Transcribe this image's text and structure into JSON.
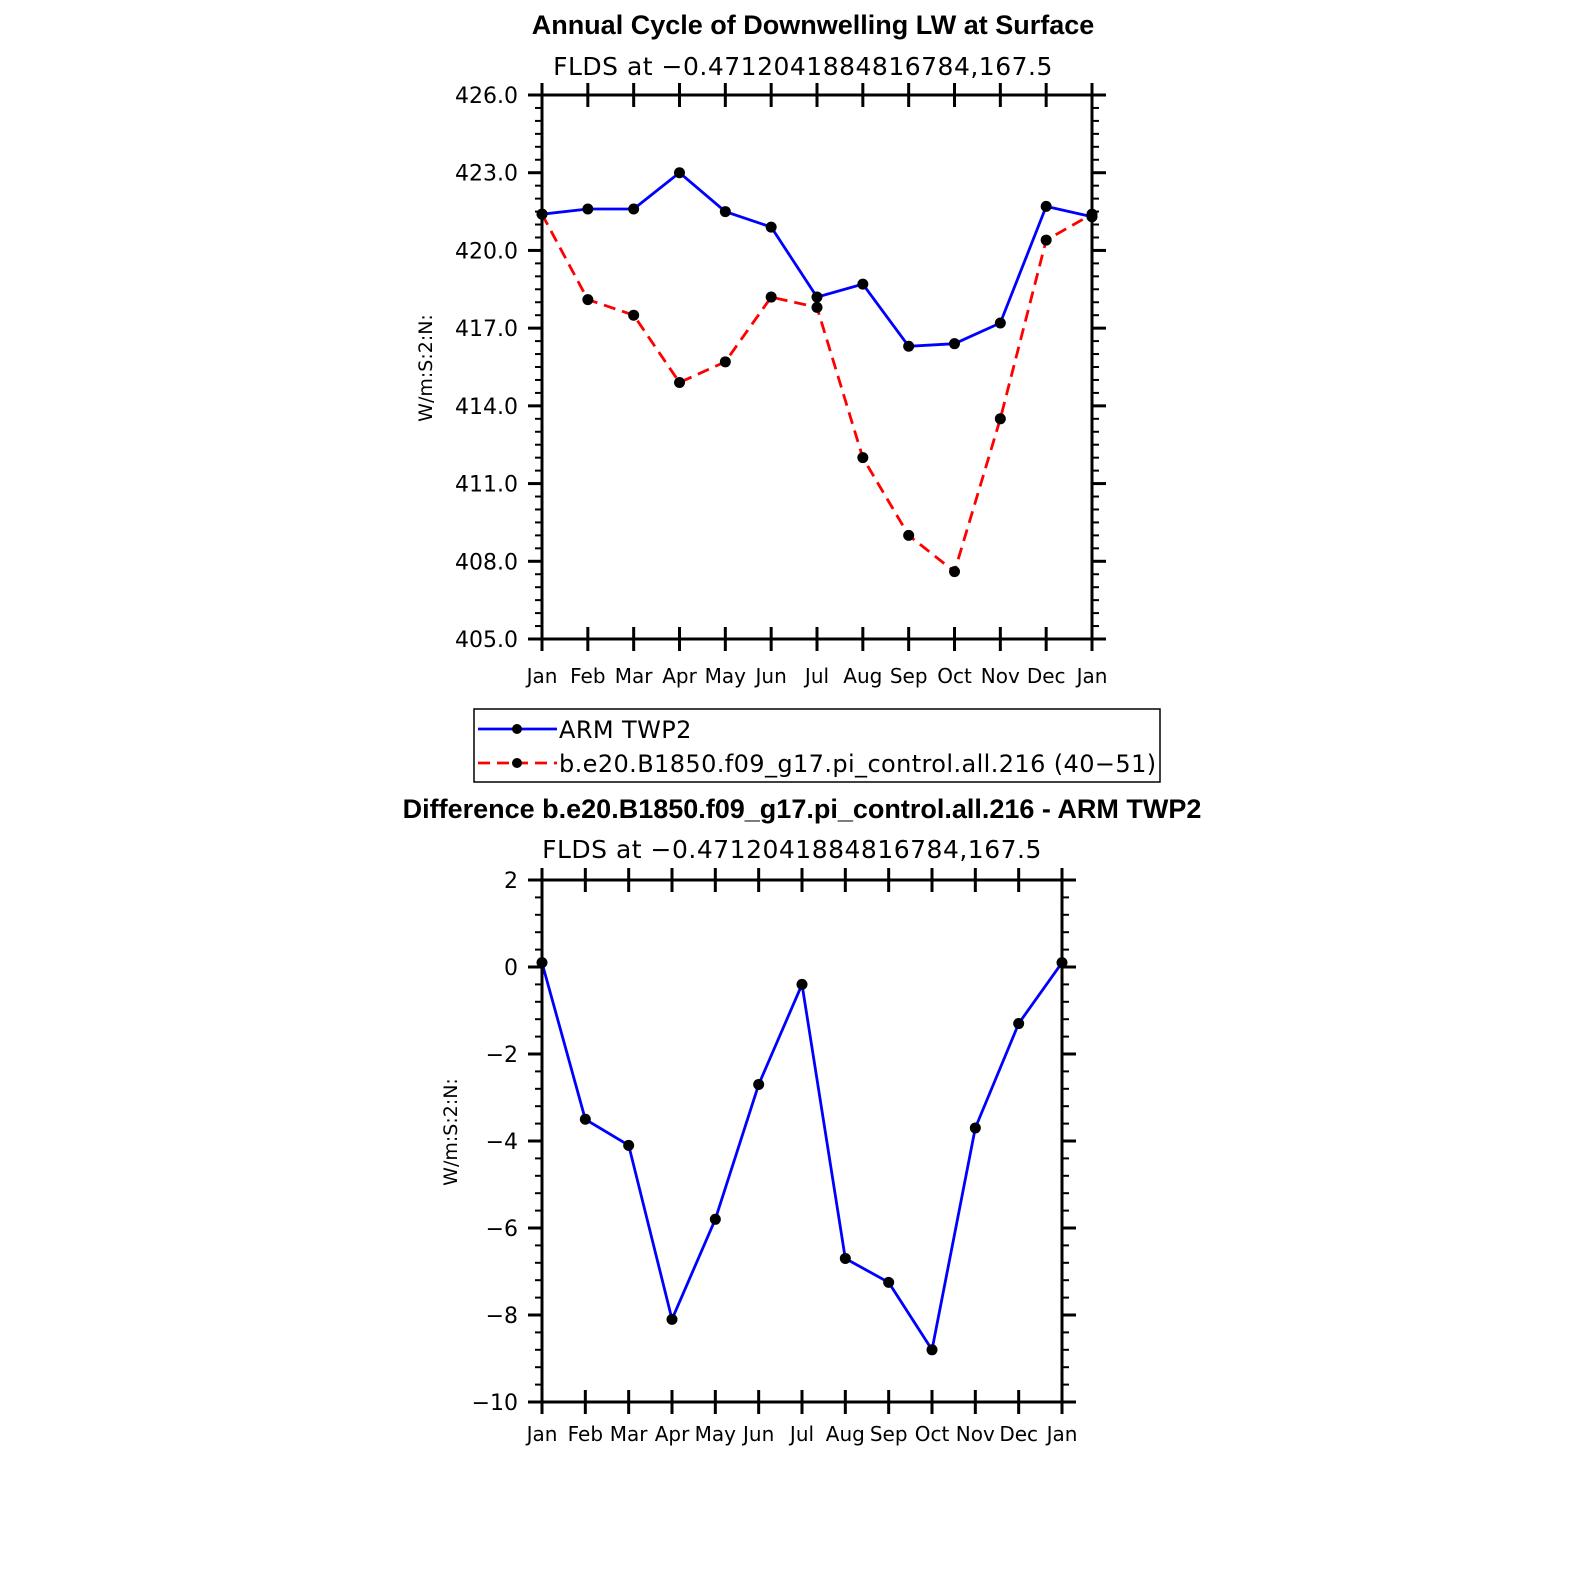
{
  "chart_data": [
    {
      "type": "line",
      "title": "Annual Cycle of Downwelling LW at Surface",
      "subtitle": "FLDS at −0.4712041884816784,167.5",
      "ylabel": "W/m:S:2:N:",
      "xlabel": "",
      "categories": [
        "Jan",
        "Feb",
        "Mar",
        "Apr",
        "May",
        "Jun",
        "Jul",
        "Aug",
        "Sep",
        "Oct",
        "Nov",
        "Dec",
        "Jan"
      ],
      "yticks": [
        "405.0",
        "408.0",
        "411.0",
        "414.0",
        "417.0",
        "420.0",
        "423.0",
        "426.0"
      ],
      "ylim": [
        405,
        426
      ],
      "grid": false,
      "legend_position": "bottom",
      "series": [
        {
          "name": "ARM TWP2",
          "color": "#0000ff",
          "style": "solid",
          "values": [
            421.4,
            421.6,
            421.6,
            423.0,
            421.5,
            420.9,
            418.2,
            418.7,
            416.3,
            416.4,
            417.2,
            421.7,
            421.3
          ]
        },
        {
          "name": "b.e20.B1850.f09_g17.pi_control.all.216 (40−51)",
          "color": "#ff0000",
          "style": "dashed",
          "values": [
            421.4,
            418.1,
            417.5,
            414.9,
            415.7,
            418.2,
            417.8,
            412.0,
            409.0,
            407.6,
            413.5,
            420.4,
            421.4
          ]
        }
      ]
    },
    {
      "type": "line",
      "title": "Difference b.e20.B1850.f09_g17.pi_control.all.216 - ARM TWP2",
      "subtitle": "FLDS at −0.4712041884816784,167.5",
      "ylabel": "W/m:S:2:N:",
      "xlabel": "",
      "categories": [
        "Jan",
        "Feb",
        "Mar",
        "Apr",
        "May",
        "Jun",
        "Jul",
        "Aug",
        "Sep",
        "Oct",
        "Nov",
        "Dec",
        "Jan"
      ],
      "yticks": [
        "−10",
        "−8",
        "−6",
        "−4",
        "−2",
        "0",
        "2"
      ],
      "ylim": [
        -10,
        2
      ],
      "grid": false,
      "series": [
        {
          "color": "#0000ff",
          "style": "solid",
          "values": [
            0.1,
            -3.5,
            -4.1,
            -8.1,
            -5.8,
            -2.7,
            -0.4,
            -6.7,
            -7.25,
            -8.8,
            -3.7,
            -1.3,
            0.1
          ]
        }
      ]
    }
  ]
}
